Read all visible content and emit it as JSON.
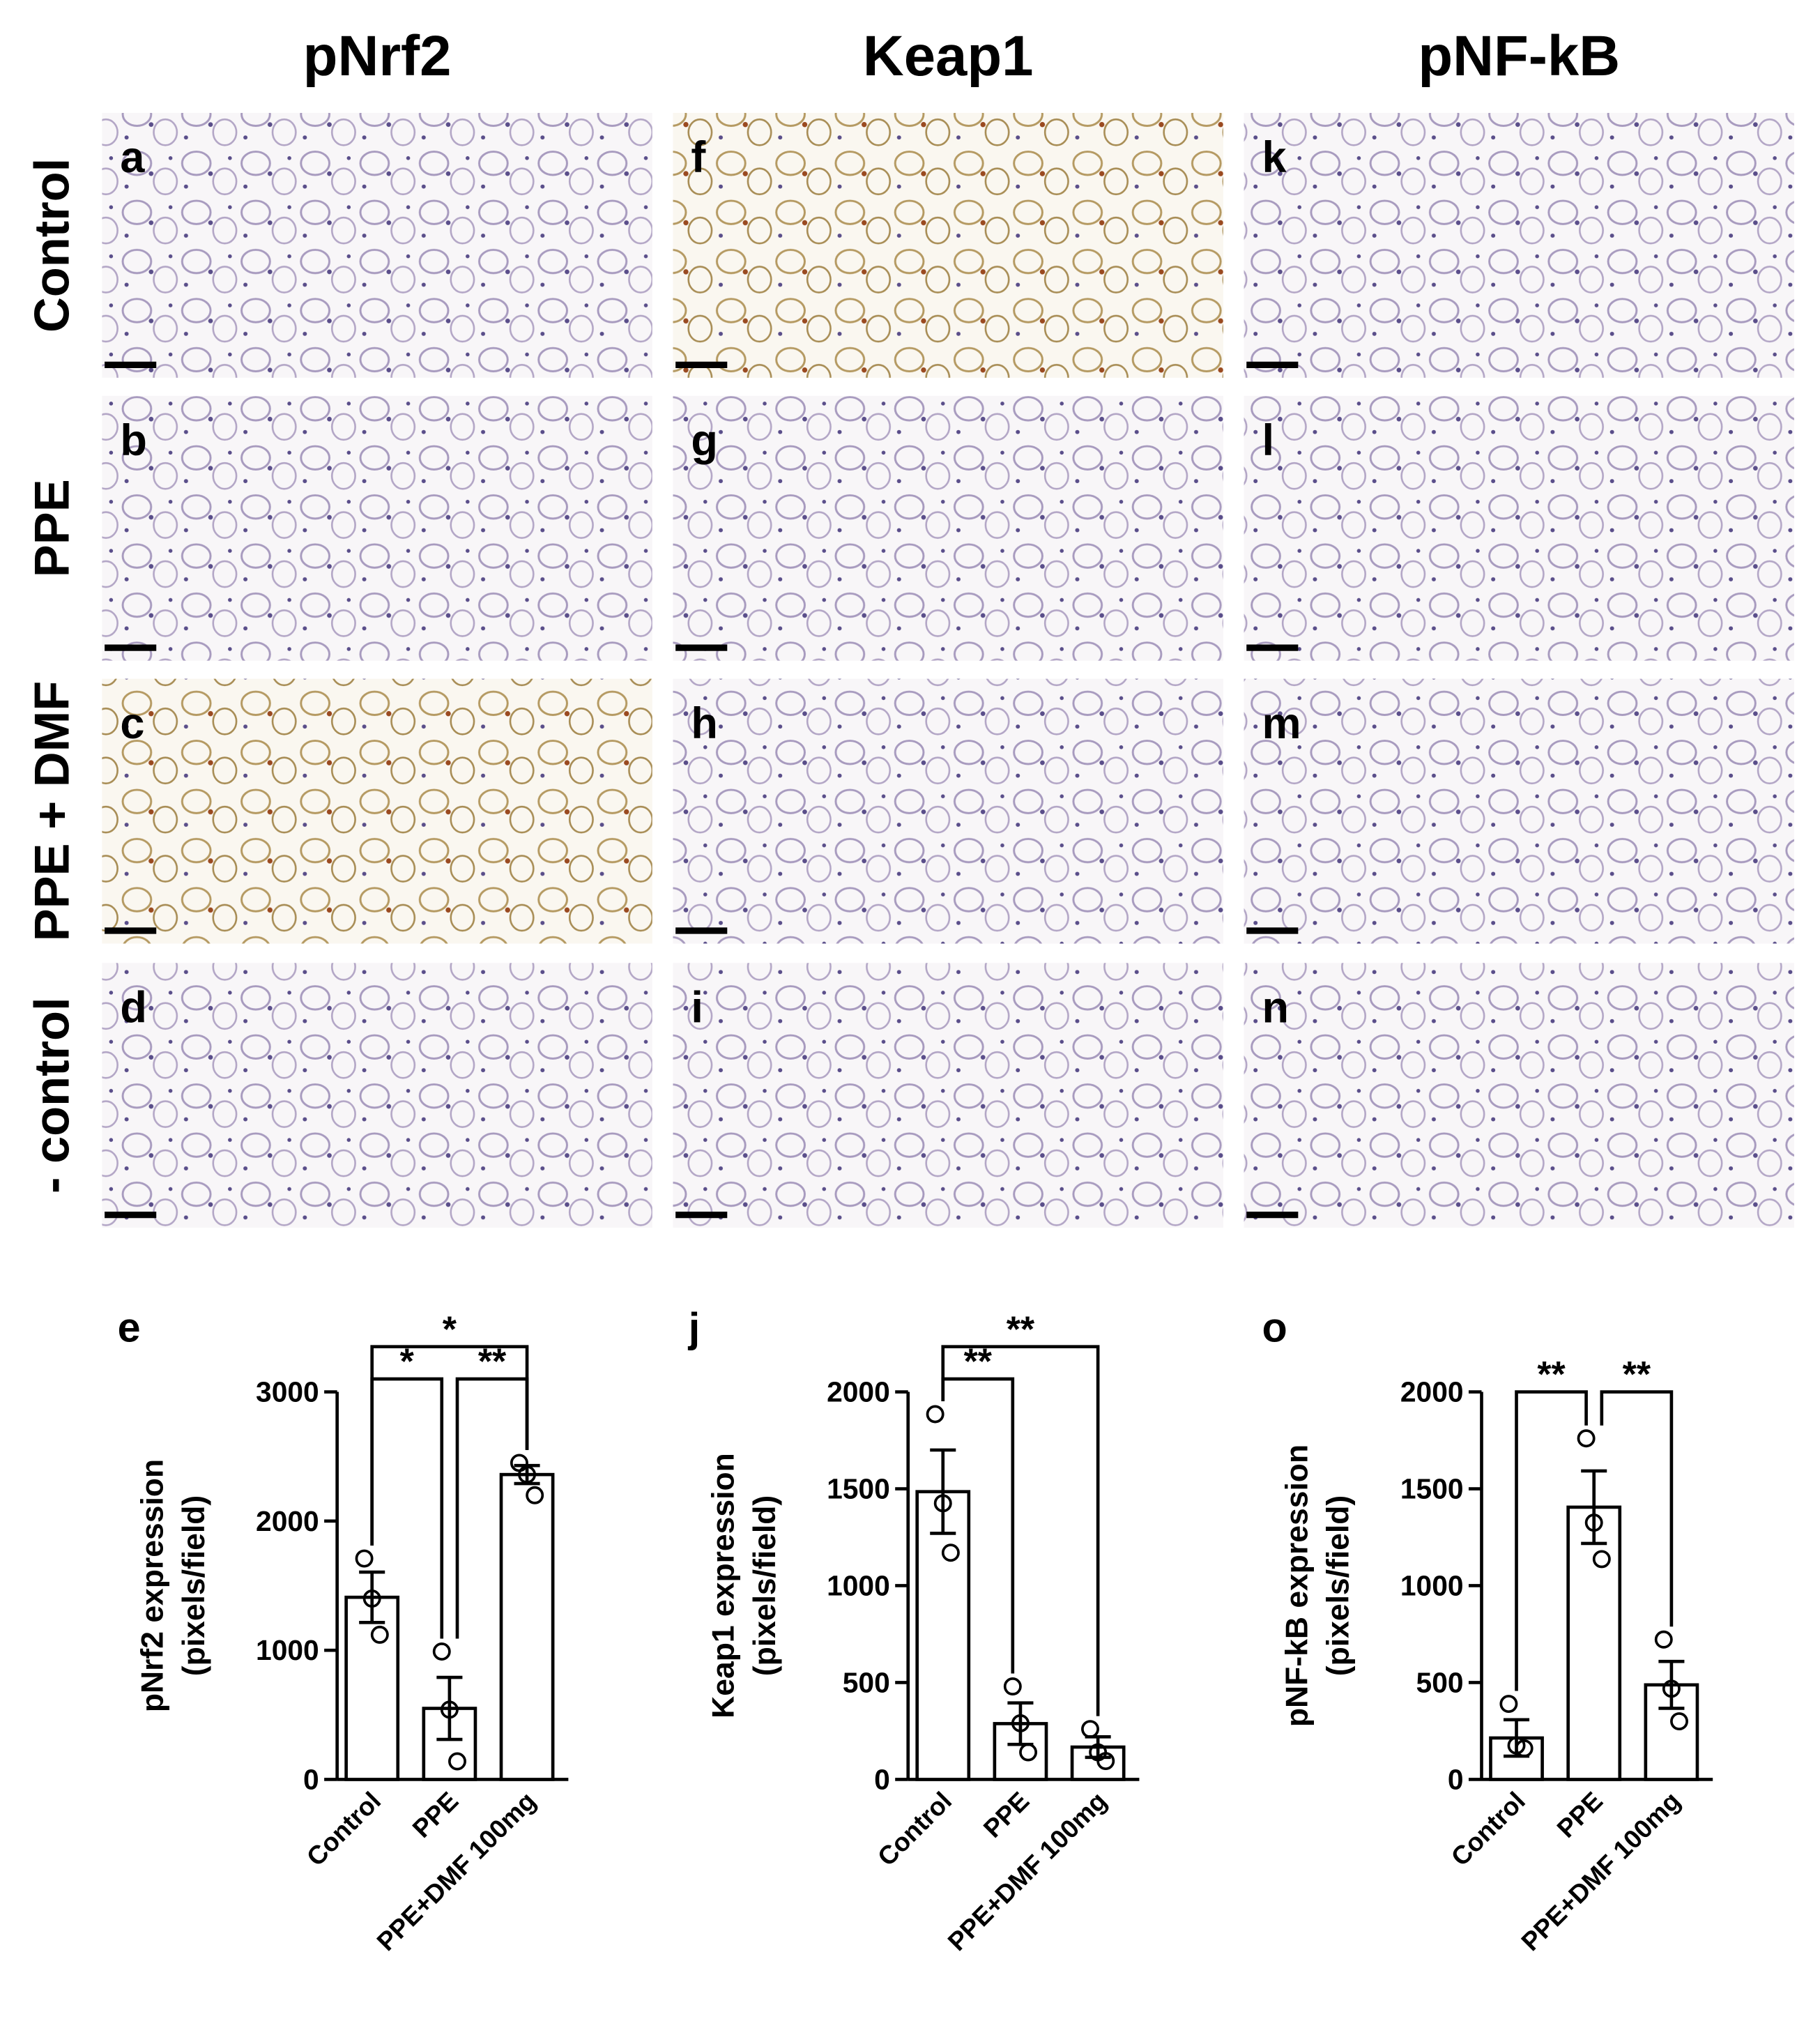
{
  "columns": [
    "pNrf2",
    "Keap1",
    "pNF-kB"
  ],
  "rows": [
    "Control",
    "PPE",
    "PPE + DMF",
    "- control"
  ],
  "panel_letters": [
    [
      "a",
      "b",
      "c",
      "d"
    ],
    [
      "f",
      "g",
      "h",
      "i"
    ],
    [
      "k",
      "l",
      "m",
      "n"
    ]
  ],
  "chart_data": [
    {
      "type": "bar",
      "label": "e",
      "ylabel": [
        "pNrf2 expression",
        "(pixels/field)"
      ],
      "categories": [
        "Control",
        "PPE",
        "PPE+DMF 100mg"
      ],
      "values": [
        1410,
        550,
        2360
      ],
      "errors": [
        195,
        240,
        70
      ],
      "points": [
        [
          1710,
          1400,
          1120
        ],
        [
          990,
          540,
          140
        ],
        [
          2450,
          2360,
          2200
        ]
      ],
      "color": "#ffffff",
      "edge_color": "#000000",
      "ylim": [
        0,
        3000
      ],
      "yticks": [
        0,
        1000,
        2000,
        3000
      ],
      "annotations": [
        {
          "text": "*",
          "from": 0,
          "to": 2
        },
        {
          "text": "*",
          "from": 0,
          "to": 1
        },
        {
          "text": "**",
          "from": 1,
          "to": 2
        }
      ]
    },
    {
      "type": "bar",
      "label": "j",
      "ylabel": [
        "Keap1 expression",
        "(pixels/field)"
      ],
      "categories": [
        "Control",
        "PPE",
        "PPE+DMF 100mg"
      ],
      "values": [
        1485,
        288,
        167
      ],
      "errors": [
        215,
        107,
        53
      ],
      "points": [
        [
          1885,
          1425,
          1170
        ],
        [
          480,
          290,
          140
        ],
        [
          260,
          140,
          95
        ]
      ],
      "color": "#ffffff",
      "edge_color": "#000000",
      "ylim": [
        0,
        2000
      ],
      "yticks": [
        0,
        500,
        1000,
        1500,
        2000
      ],
      "annotations": [
        {
          "text": "**",
          "from": 0,
          "to": 2
        },
        {
          "text": "**",
          "from": 0,
          "to": 1
        }
      ]
    },
    {
      "type": "bar",
      "label": "o",
      "ylabel": [
        "pNF-kB expression",
        "(pixels/field)"
      ],
      "categories": [
        "Control",
        "PPE",
        "PPE+DMF 100mg"
      ],
      "values": [
        214,
        1405,
        488
      ],
      "errors": [
        94,
        187,
        121
      ],
      "points": [
        [
          390,
          175,
          160
        ],
        [
          1760,
          1325,
          1137
        ],
        [
          722,
          468,
          300
        ]
      ],
      "color": "#ffffff",
      "edge_color": "#000000",
      "ylim": [
        0,
        2000
      ],
      "yticks": [
        0,
        500,
        1000,
        1500,
        2000
      ],
      "annotations": [
        {
          "text": "**",
          "from": 0,
          "to": 1
        },
        {
          "text": "**",
          "from": 1,
          "to": 2
        }
      ]
    }
  ]
}
